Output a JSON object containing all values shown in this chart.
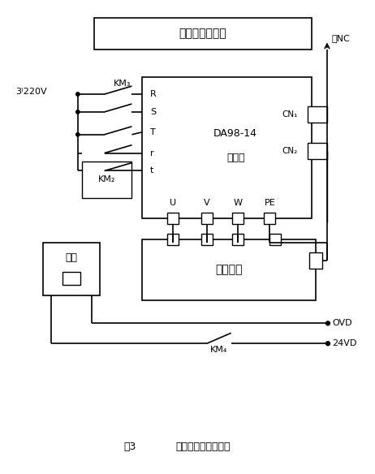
{
  "title_num": "图3",
  "title_text": "伺服驱动和抱闸控制",
  "top_box_text": "伺服驱动和抱闸",
  "driver_text1": "DA98-14",
  "driver_text2": "驱动器",
  "servo_text": "伺服电机",
  "brake_text": "抱闸",
  "voltage_label": "3⁾220V",
  "km3_label": "KM₃",
  "km2_label": "KM₂",
  "km4_label": "KM₄",
  "cn1_label": "CN₁",
  "cn2_label": "CN₂",
  "nc_label": "去NC",
  "vd24_label": "24VD",
  "ovd_label": "OVD",
  "r_label": "R",
  "s_label": "S",
  "t_label": "T",
  "r2_label": "r",
  "t2_label": "t",
  "u_label": "U",
  "v_label": "V",
  "w_label": "W",
  "pe_label": "PE",
  "bg_color": "#ffffff",
  "lc": "#000000"
}
